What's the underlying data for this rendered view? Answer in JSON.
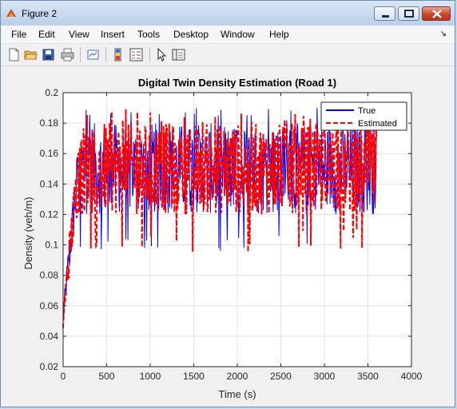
{
  "window": {
    "title": "Figure 2"
  },
  "menu": [
    "File",
    "Edit",
    "View",
    "Insert",
    "Tools",
    "Desktop",
    "Window",
    "Help"
  ],
  "toolbar_icons": [
    "new-figure-icon",
    "open-file-icon",
    "save-icon",
    "print-icon",
    "link-plot-icon",
    "colorbar-icon",
    "legend-icon",
    "pointer-icon",
    "property-editor-icon"
  ],
  "chart_data": {
    "type": "line",
    "title": "Digital Twin Density Estimation (Road 1)",
    "xlabel": "Time (s)",
    "ylabel": "Density (veh/m)",
    "xlim": [
      0,
      4000
    ],
    "ylim": [
      0.02,
      0.2
    ],
    "xticks": [
      0,
      500,
      1000,
      1500,
      2000,
      2500,
      3000,
      3500,
      4000
    ],
    "yticks": [
      0.02,
      0.04,
      0.06,
      0.08,
      0.1,
      0.12,
      0.14,
      0.16,
      0.18,
      0.2
    ],
    "xtick_labels": [
      "0",
      "500",
      "1000",
      "1500",
      "2000",
      "2500",
      "3000",
      "3500",
      "4000"
    ],
    "ytick_labels": [
      "0.02",
      "0.04",
      "0.06",
      "0.08",
      "0.1",
      "0.12",
      "0.14",
      "0.16",
      "0.18",
      "0.2"
    ],
    "grid": true,
    "legend_location": "top-right",
    "series": [
      {
        "name": "True",
        "color": "#0000ff",
        "style": "solid",
        "approx_profile": {
          "start_value": 0.05,
          "ramp_end_time": 180,
          "plateau_mean": 0.15,
          "plateau_band": [
            0.11,
            0.19
          ],
          "end_time": 3600
        }
      },
      {
        "name": "Estimated",
        "color": "#ff0000",
        "style": "dashed",
        "approx_profile": {
          "start_value": 0.05,
          "ramp_end_time": 180,
          "plateau_mean": 0.15,
          "plateau_band": [
            0.11,
            0.19
          ],
          "end_time": 3600
        }
      }
    ]
  }
}
